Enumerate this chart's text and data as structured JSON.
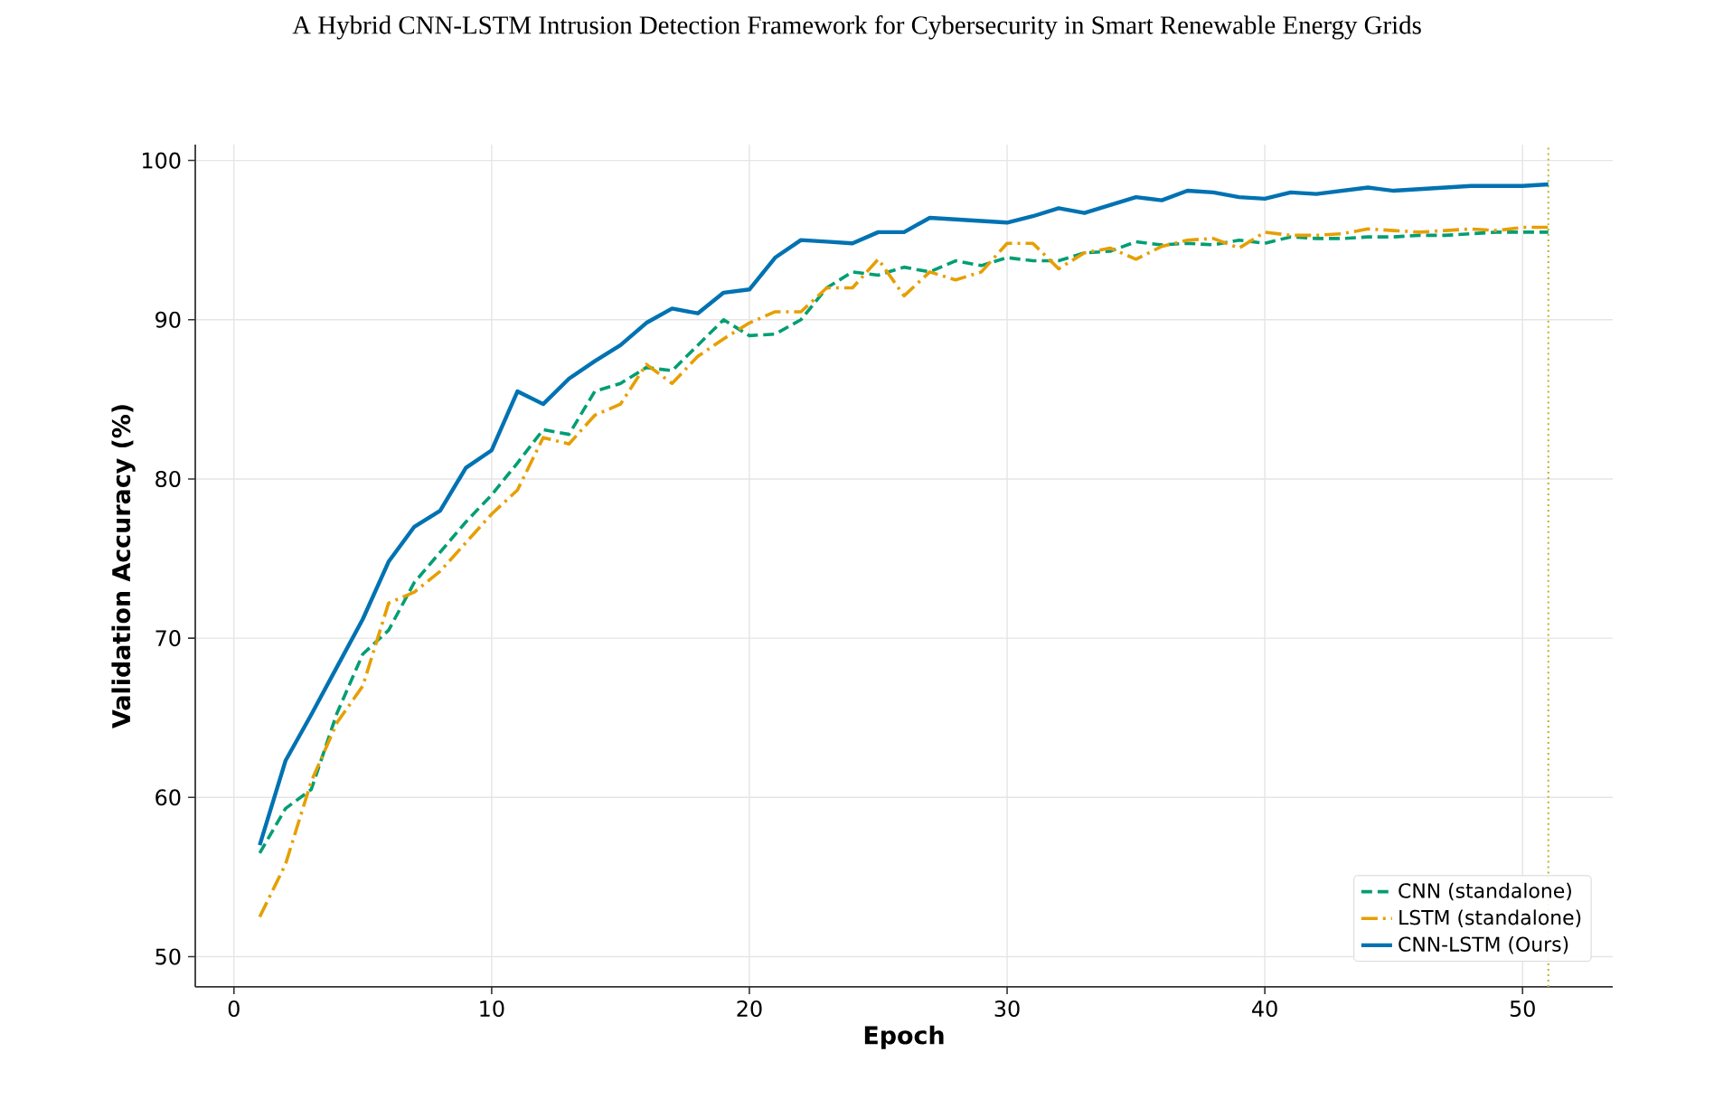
{
  "chart_data": {
    "type": "line",
    "title": "A Hybrid CNN-LSTM Intrusion Detection Framework for Cybersecurity in Smart Renewable Energy Grids",
    "xlabel": "Epoch",
    "ylabel": "Validation Accuracy (%)",
    "x": [
      1,
      2,
      3,
      4,
      5,
      6,
      7,
      8,
      9,
      10,
      11,
      12,
      13,
      14,
      15,
      16,
      17,
      18,
      19,
      20,
      21,
      22,
      23,
      24,
      25,
      26,
      27,
      28,
      29,
      30,
      31,
      32,
      33,
      34,
      35,
      36,
      37,
      38,
      39,
      40,
      41,
      42,
      43,
      44,
      45,
      46,
      47,
      48,
      49,
      50,
      51
    ],
    "series": [
      {
        "name": "CNN (standalone)",
        "color": "#009e73",
        "line_style": "dashed",
        "values": [
          56.5,
          59.3,
          60.5,
          65.3,
          69.0,
          70.5,
          73.5,
          75.4,
          77.3,
          79.0,
          81.0,
          83.1,
          82.8,
          85.5,
          86.0,
          87.0,
          86.8,
          88.4,
          90.0,
          89.0,
          89.1,
          90.0,
          92.0,
          93.0,
          92.8,
          93.3,
          93.0,
          93.7,
          93.4,
          93.9,
          93.7,
          93.7,
          94.2,
          94.3,
          94.9,
          94.7,
          94.8,
          94.7,
          95.0,
          94.8,
          95.2,
          95.1,
          95.1,
          95.2,
          95.2,
          95.3,
          95.3,
          95.4,
          95.5,
          95.5,
          95.5
        ]
      },
      {
        "name": "LSTM (standalone)",
        "color": "#e69f00",
        "line_style": "dashdot",
        "values": [
          52.5,
          55.8,
          61.0,
          64.7,
          67.0,
          72.2,
          72.9,
          74.2,
          76.0,
          77.8,
          79.3,
          82.6,
          82.2,
          84.0,
          84.7,
          87.2,
          86.0,
          87.7,
          88.8,
          89.8,
          90.5,
          90.5,
          92.0,
          92.0,
          93.8,
          91.5,
          93.0,
          92.5,
          93.0,
          94.8,
          94.8,
          93.2,
          94.2,
          94.5,
          93.8,
          94.6,
          95.0,
          95.1,
          94.5,
          95.5,
          95.3,
          95.3,
          95.4,
          95.7,
          95.6,
          95.5,
          95.6,
          95.7,
          95.6,
          95.8,
          95.8
        ]
      },
      {
        "name": "CNN-LSTM (Ours)",
        "color": "#0072b2",
        "line_style": "solid",
        "values": [
          57.0,
          62.3,
          65.2,
          68.2,
          71.2,
          74.8,
          77.0,
          78.0,
          80.7,
          81.8,
          85.5,
          84.7,
          86.3,
          87.4,
          88.4,
          89.8,
          90.7,
          90.4,
          91.7,
          91.9,
          93.9,
          95.0,
          94.9,
          94.8,
          95.5,
          95.5,
          96.4,
          96.3,
          96.2,
          96.1,
          96.5,
          97.0,
          96.7,
          97.2,
          97.7,
          97.5,
          98.1,
          98.0,
          97.7,
          97.6,
          98.0,
          97.9,
          98.1,
          98.3,
          98.1,
          98.2,
          98.3,
          98.4,
          98.4,
          98.4,
          98.5
        ]
      }
    ],
    "xlim": [
      -1.5,
      53.5
    ],
    "ylim": [
      48.1,
      101
    ],
    "xticks": [
      0,
      10,
      20,
      30,
      40,
      50
    ],
    "yticks": [
      50,
      60,
      70,
      80,
      90,
      100
    ],
    "grid": true,
    "legend": "bottom right",
    "marker": "none",
    "ref_lines": [
      {
        "axis": "x",
        "value": 51,
        "color": "#b5b52a",
        "line_style": "dotted"
      }
    ]
  }
}
